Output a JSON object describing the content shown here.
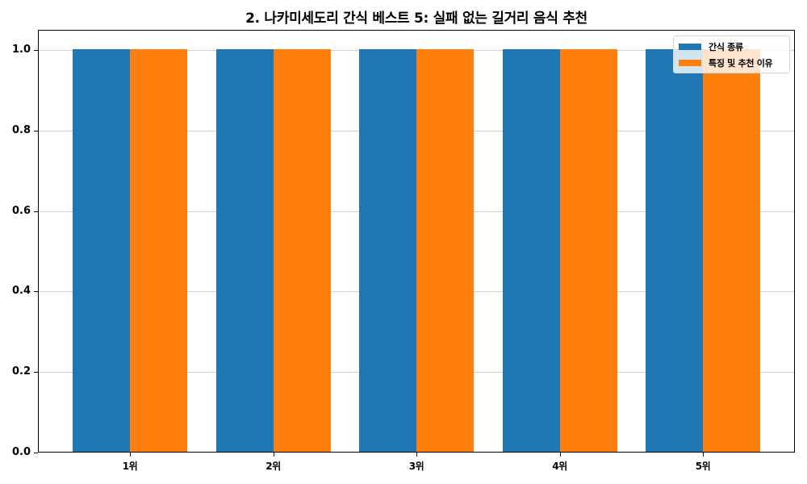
{
  "chart_data": {
    "type": "bar",
    "title": "2. 나카미세도리 간식 베스트 5: 실패 없는 길거리 음식 추천",
    "xlabel": "",
    "ylabel": "",
    "categories": [
      "1위",
      "2위",
      "3위",
      "4위",
      "5위"
    ],
    "series": [
      {
        "name": "간식 종류",
        "color": "#1f77b4",
        "values": [
          1.0,
          1.0,
          1.0,
          1.0,
          1.0
        ]
      },
      {
        "name": "특징 및 추천 이유",
        "color": "#ff7f0e",
        "values": [
          1.0,
          1.0,
          1.0,
          1.0,
          1.0
        ]
      }
    ],
    "ylim": [
      0,
      1.05
    ],
    "yticks": [
      "0.0",
      "0.2",
      "0.4",
      "0.6",
      "0.8",
      "1.0"
    ],
    "grid": true,
    "legend_position": "upper right"
  },
  "legend": {
    "items": [
      {
        "label": "간식 종류",
        "color": "#1f77b4"
      },
      {
        "label": "특징 및 추천 이유",
        "color": "#ff7f0e"
      }
    ]
  }
}
